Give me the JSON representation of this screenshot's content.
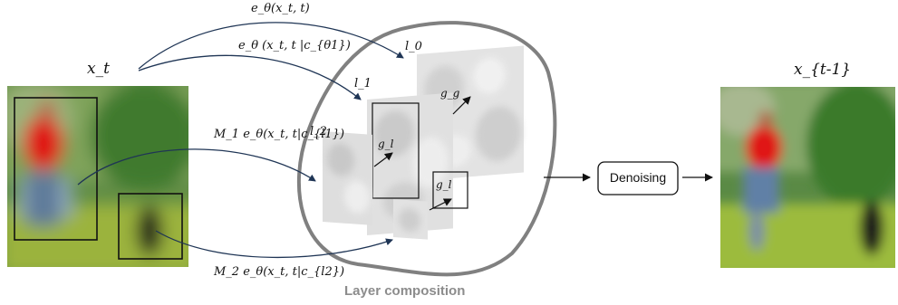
{
  "labels": {
    "xt": "x_t",
    "xt_minus_1": "x_{t-1}",
    "eq_top": "e_θ(x_t, t)",
    "eq_second": "e_θ (x_t, t |c_{θ1})",
    "eq_third": "M_1 e_θ(x_t, t|c_{l1})",
    "eq_bottom": "M_2 e_θ(x_t, t|c_{l2})",
    "layer_l0": "l_0",
    "layer_l1": "l_1",
    "layer_l2": "l_2",
    "g_g": "g_g",
    "g_l_a": "g_l",
    "g_l_b": "g_l",
    "denoising": "Denoising",
    "layer_composition": "Layer composition"
  },
  "colors": {
    "arrow_curve": "#1f3555",
    "blob_outline": "#808080",
    "composition_text": "#8c8c8c",
    "person_shirt": "#e01818",
    "grass": "#8aa838",
    "trees": "#4f8a3a"
  }
}
